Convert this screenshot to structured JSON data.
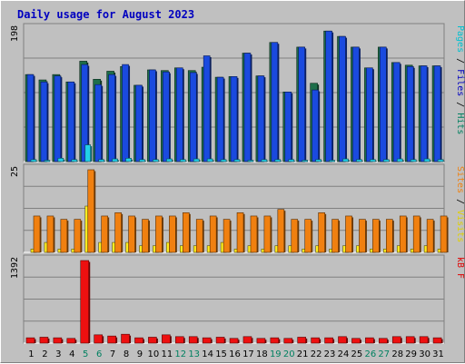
{
  "title": "Daily usage for August 2023",
  "colors": {
    "background": "#c0c0c0",
    "title": "#0000c0",
    "hits": "#1e6e4a",
    "files": "#1a4adf",
    "pages": "#22d0e8",
    "visits": "#ffee20",
    "sites": "#f08010",
    "kbytes": "#ee1010",
    "weekday": "#000000",
    "weekend": "#008060"
  },
  "panels": {
    "top": {
      "ymax_label": "198",
      "legend": [
        {
          "text": "Pages",
          "color": "#00c0d0"
        },
        {
          "text": " / ",
          "color": "#000000"
        },
        {
          "text": "Files",
          "color": "#0000c0"
        },
        {
          "text": " / ",
          "color": "#000000"
        },
        {
          "text": "Hits",
          "color": "#008060"
        }
      ]
    },
    "middle": {
      "ymax_label": "25",
      "legend": [
        {
          "text": "Sites",
          "color": "#f08010"
        },
        {
          "text": " / ",
          "color": "#000000"
        },
        {
          "text": "Visits",
          "color": "#e0d000"
        }
      ]
    },
    "bottom": {
      "ymax_label": "1392",
      "legend": [
        {
          "text": "kB F",
          "color": "#e00000"
        }
      ]
    }
  },
  "chart_data": {
    "type": "bar",
    "categories": [
      "1",
      "2",
      "3",
      "4",
      "5",
      "6",
      "7",
      "8",
      "9",
      "10",
      "11",
      "12",
      "13",
      "14",
      "15",
      "16",
      "17",
      "18",
      "19",
      "20",
      "21",
      "22",
      "23",
      "24",
      "25",
      "26",
      "27",
      "28",
      "29",
      "30",
      "31"
    ],
    "weekend_days": [
      "5",
      "6",
      "12",
      "13",
      "19",
      "20",
      "26",
      "27"
    ],
    "top": {
      "ymax": 198,
      "series": [
        {
          "name": "Hits",
          "values": [
            130,
            122,
            130,
            119,
            150,
            123,
            135,
            142,
            114,
            137,
            136,
            140,
            136,
            141,
            126,
            127,
            162,
            128,
            178,
            104,
            171,
            117,
            195,
            187,
            171,
            140,
            171,
            148,
            144,
            143,
            143
          ]
        },
        {
          "name": "Files",
          "values": [
            130,
            119,
            128,
            119,
            145,
            115,
            130,
            145,
            114,
            137,
            134,
            140,
            133,
            158,
            126,
            127,
            162,
            128,
            178,
            104,
            171,
            107,
            195,
            187,
            171,
            140,
            171,
            148,
            142,
            143,
            143
          ]
        },
        {
          "name": "Pages",
          "values": [
            3,
            2,
            5,
            3,
            25,
            3,
            4,
            5,
            3,
            3,
            4,
            3,
            4,
            4,
            3,
            3,
            2,
            3,
            3,
            3,
            2,
            3,
            2,
            4,
            3,
            3,
            3,
            4,
            3,
            4,
            3
          ]
        }
      ]
    },
    "middle": {
      "ymax": 25,
      "series": [
        {
          "name": "Sites",
          "values": [
            11,
            11,
            10,
            10,
            25,
            11,
            12,
            11,
            10,
            11,
            11,
            12,
            10,
            11,
            10,
            12,
            11,
            11,
            13,
            10,
            10,
            12,
            10,
            11,
            10,
            10,
            10,
            11,
            11,
            10,
            11
          ]
        },
        {
          "name": "Visits",
          "values": [
            1,
            3,
            1,
            1,
            14,
            3,
            3,
            3,
            2,
            2,
            3,
            2,
            2,
            2,
            3,
            1,
            2,
            1,
            2,
            2,
            1,
            2,
            1,
            2,
            2,
            1,
            1,
            2,
            1,
            2,
            1
          ]
        }
      ]
    },
    "bottom": {
      "ymax": 1392,
      "series": [
        {
          "name": "kB F",
          "values": [
            90,
            100,
            90,
            80,
            1392,
            140,
            120,
            150,
            90,
            100,
            140,
            110,
            110,
            90,
            100,
            80,
            110,
            80,
            90,
            80,
            100,
            90,
            90,
            110,
            80,
            90,
            80,
            110,
            110,
            110,
            90
          ]
        }
      ]
    }
  }
}
